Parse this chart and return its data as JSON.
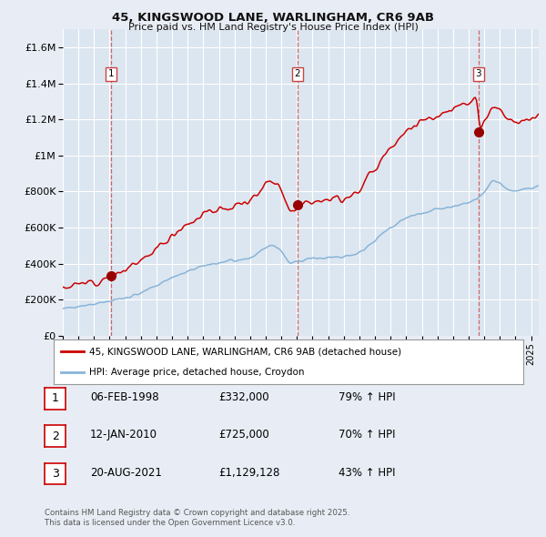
{
  "title_line1": "45, KINGSWOOD LANE, WARLINGHAM, CR6 9AB",
  "title_line2": "Price paid vs. HM Land Registry's House Price Index (HPI)",
  "background_color": "#e8edf5",
  "plot_bg_color": "#dce6f0",
  "grid_color": "#ffffff",
  "red_line_color": "#cc0000",
  "blue_line_color": "#88b4d8",
  "sale_marker_color": "#990000",
  "dashed_line_color": "#cc4444",
  "ylim": [
    0,
    1700000
  ],
  "yticks": [
    0,
    200000,
    400000,
    600000,
    800000,
    1000000,
    1200000,
    1400000,
    1600000
  ],
  "ytick_labels": [
    "£0",
    "£200K",
    "£400K",
    "£600K",
    "£800K",
    "£1M",
    "£1.2M",
    "£1.4M",
    "£1.6M"
  ],
  "xlim_start": 1995,
  "xlim_end": 2025.5,
  "sale1_year": 1998.09,
  "sale1_price": 332000,
  "sale2_year": 2010.04,
  "sale2_price": 725000,
  "sale3_year": 2021.63,
  "sale3_price": 1129128,
  "legend_label_red": "45, KINGSWOOD LANE, WARLINGHAM, CR6 9AB (detached house)",
  "legend_label_blue": "HPI: Average price, detached house, Croydon",
  "footer": "Contains HM Land Registry data © Crown copyright and database right 2025.\nThis data is licensed under the Open Government Licence v3.0.",
  "table_rows": [
    {
      "num": "1",
      "date": "06-FEB-1998",
      "price": "£332,000",
      "hpi": "79% ↑ HPI"
    },
    {
      "num": "2",
      "date": "12-JAN-2010",
      "price": "£725,000",
      "hpi": "70% ↑ HPI"
    },
    {
      "num": "3",
      "date": "20-AUG-2021",
      "price": "£1,129,128",
      "hpi": "43% ↑ HPI"
    }
  ]
}
